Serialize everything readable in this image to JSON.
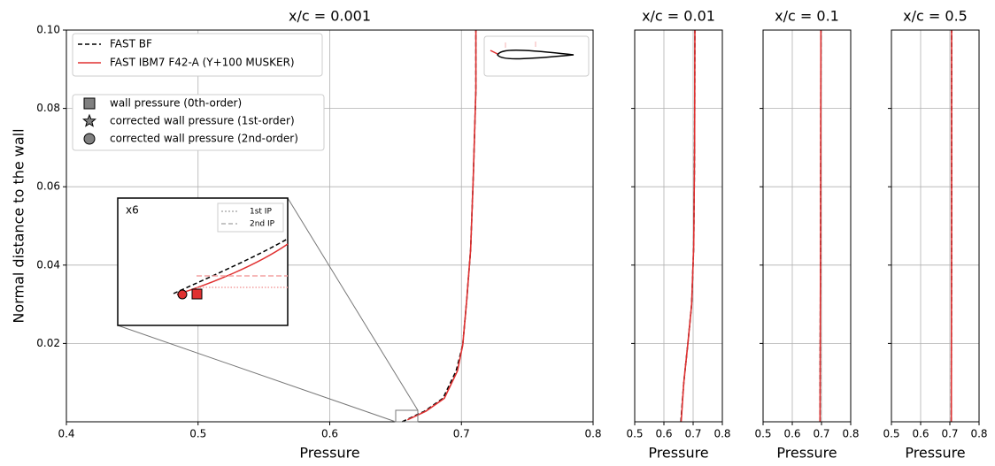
{
  "chart_data": [
    {
      "type": "line",
      "title": "x/c = 0.001",
      "xlabel": "Pressure",
      "ylabel": "Normal distance to the wall",
      "xlim": [
        0.4,
        0.8
      ],
      "xticks": [
        0.4,
        0.5,
        0.6,
        0.7,
        0.8
      ],
      "ylim": [
        0,
        0.1
      ],
      "yticks": [
        0.02,
        0.04,
        0.06,
        {
          "value": 0.1,
          "label": "0.10"
        },
        0.08
      ],
      "grid": true,
      "show_yticklabels": true,
      "series": [
        {
          "name": "FAST BF",
          "color": "#000000",
          "dash": true,
          "x": [
            0.655,
            0.672,
            0.686,
            0.696,
            0.701,
            0.704,
            0.707,
            0.709,
            0.711,
            0.711
          ],
          "values": [
            0,
            0.0027,
            0.006,
            0.013,
            0.0196,
            0.031,
            0.044,
            0.0625,
            0.085,
            0.1
          ]
        },
        {
          "name": "FAST IBM7 F42-A (Y+100 MUSKER)",
          "color": "#e03030",
          "dash": false,
          "x": [
            0.659,
            0.673,
            0.687,
            0.697,
            0.701,
            0.704,
            0.707,
            0.709,
            0.711,
            0.711
          ],
          "values": [
            0.0005,
            0.0027,
            0.006,
            0.013,
            0.0196,
            0.031,
            0.044,
            0.0625,
            0.085,
            0.1
          ]
        }
      ],
      "markers": [
        {
          "name": "wall pressure (0th-order)",
          "marker": "square",
          "color": "#808080"
        },
        {
          "name": "corrected wall pressure (1st-order)",
          "marker": "star",
          "color": "#808080"
        },
        {
          "name": "corrected wall pressure (2nd-order)",
          "marker": "circle",
          "color": "#808080"
        }
      ],
      "inset": {
        "label": "x6",
        "legend": [
          "1st IP",
          "2nd IP"
        ]
      }
    },
    {
      "type": "line",
      "title": "x/c = 0.01",
      "xlabel": "Pressure",
      "xlim": [
        0.5,
        0.8
      ],
      "xticks": [
        0.5,
        0.6,
        0.7,
        0.8
      ],
      "ylim": [
        0,
        0.1
      ],
      "yticks": [
        0.02,
        0.04,
        0.06,
        0.08
      ],
      "grid": true,
      "show_yticklabels": false,
      "series": [
        {
          "name": "FAST BF",
          "color": "#000000",
          "dash": true,
          "x": [
            0.658,
            0.668,
            0.682,
            0.695,
            0.702,
            0.705,
            0.706
          ],
          "values": [
            0,
            0.01,
            0.02,
            0.03,
            0.045,
            0.07,
            0.1
          ]
        },
        {
          "name": "FAST IBM7 F42-A (Y+100 MUSKER)",
          "color": "#e03030",
          "dash": false,
          "x": [
            0.659,
            0.668,
            0.682,
            0.695,
            0.702,
            0.705,
            0.706
          ],
          "values": [
            0,
            0.01,
            0.02,
            0.03,
            0.045,
            0.07,
            0.1
          ]
        }
      ]
    },
    {
      "type": "line",
      "title": "x/c = 0.1",
      "xlabel": "Pressure",
      "xlim": [
        0.5,
        0.8
      ],
      "xticks": [
        0.5,
        0.6,
        0.7,
        0.8
      ],
      "ylim": [
        0,
        0.1
      ],
      "yticks": [
        0.02,
        0.04,
        0.06,
        0.08
      ],
      "grid": true,
      "show_yticklabels": false,
      "series": [
        {
          "name": "FAST BF",
          "color": "#000000",
          "dash": true,
          "x": [
            0.695,
            0.697,
            0.698
          ],
          "values": [
            0,
            0.05,
            0.1
          ]
        },
        {
          "name": "FAST IBM7 F42-A (Y+100 MUSKER)",
          "color": "#e03030",
          "dash": false,
          "x": [
            0.695,
            0.697,
            0.698
          ],
          "values": [
            0,
            0.05,
            0.1
          ]
        }
      ]
    },
    {
      "type": "line",
      "title": "x/c = 0.5",
      "xlabel": "Pressure",
      "xlim": [
        0.5,
        0.8
      ],
      "xticks": [
        0.5,
        0.6,
        0.7,
        0.8
      ],
      "ylim": [
        0,
        0.1
      ],
      "yticks": [
        0.02,
        0.04,
        0.06,
        0.08
      ],
      "grid": true,
      "show_yticklabels": false,
      "series": [
        {
          "name": "FAST BF",
          "color": "#000000",
          "dash": true,
          "x": [
            0.705,
            0.706,
            0.706
          ],
          "values": [
            0,
            0.05,
            0.1
          ]
        },
        {
          "name": "FAST IBM7 F42-A (Y+100 MUSKER)",
          "color": "#e03030",
          "dash": false,
          "x": [
            0.705,
            0.706,
            0.706
          ],
          "values": [
            0,
            0.05,
            0.1
          ]
        }
      ]
    }
  ]
}
